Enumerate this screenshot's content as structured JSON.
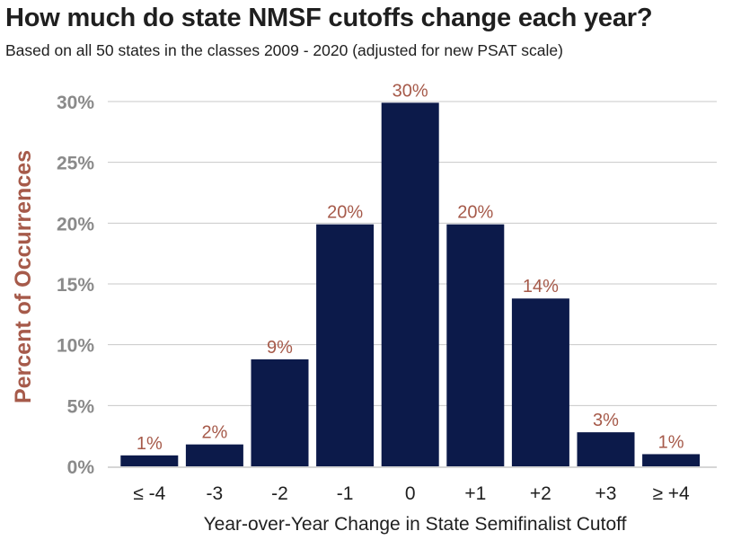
{
  "chart_data": {
    "type": "bar",
    "title": "How much do state NMSF cutoffs change each year?",
    "subtitle": "Based on all 50 states in the classes 2009 - 2020 (adjusted for new PSAT scale)",
    "xlabel": "Year-over-Year Change in State Semifinalist Cutoff",
    "ylabel": "Percent of Occurrences",
    "categories": [
      "≤ -4",
      "-3",
      "-2",
      "-1",
      "0",
      "+1",
      "+2",
      "+3",
      "≥ +4"
    ],
    "values": [
      0.9,
      1.8,
      8.8,
      19.9,
      29.9,
      19.9,
      13.8,
      2.8,
      1.0
    ],
    "data_labels": [
      "1%",
      "2%",
      "9%",
      "20%",
      "30%",
      "20%",
      "14%",
      "3%",
      "1%"
    ],
    "ylim": [
      0,
      30
    ],
    "yticks": [
      0,
      5,
      10,
      15,
      20,
      25,
      30
    ],
    "ytick_labels": [
      "0%",
      "5%",
      "10%",
      "15%",
      "20%",
      "25%",
      "30%"
    ],
    "grid": true,
    "legend": "none",
    "colors": {
      "bar": "#0c1a4a",
      "data_label": "#a65a4a",
      "ylabel": "#a65a4a",
      "tick": "#8a8a8a",
      "grid": "#c8c8c8",
      "text": "#1f1f1f"
    }
  }
}
